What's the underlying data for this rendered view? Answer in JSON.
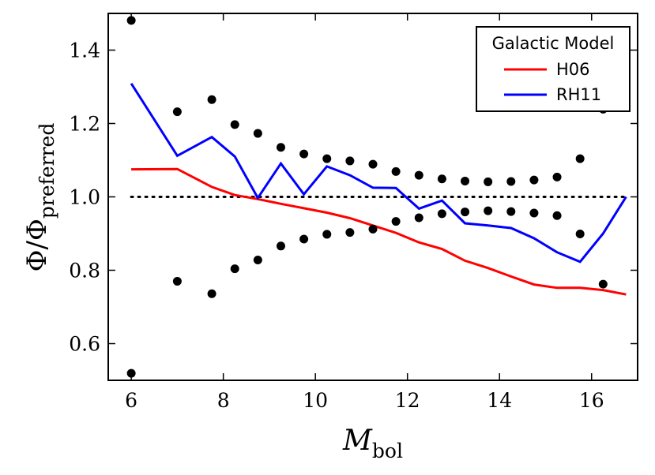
{
  "chart_data": {
    "type": "line",
    "title": "",
    "xlabel": {
      "main": "M",
      "sub": "bol"
    },
    "ylabel": {
      "phi": "Φ",
      "slash": "/",
      "phi2": "Φ",
      "sub": "preferred"
    },
    "xlim": [
      5.5,
      17.0
    ],
    "ylim": [
      0.5,
      1.5
    ],
    "xticks": [
      6,
      8,
      10,
      12,
      14,
      16
    ],
    "xtick_labels": [
      "6",
      "8",
      "10",
      "12",
      "14",
      "16"
    ],
    "yticks": [
      0.6,
      0.8,
      1.0,
      1.2,
      1.4
    ],
    "ytick_labels": [
      "0.6",
      "0.8",
      "1.0",
      "1.2",
      "1.4"
    ],
    "grid": false,
    "reference_line": {
      "y": 1.0,
      "style": "dotted",
      "x_range": [
        6.0,
        16.75
      ]
    },
    "series": [
      {
        "name": "H06",
        "color": "#ff0000",
        "x": [
          6.0,
          7.0,
          7.75,
          8.25,
          8.75,
          9.25,
          9.75,
          10.25,
          10.75,
          11.25,
          11.75,
          12.25,
          12.75,
          13.25,
          13.75,
          14.25,
          14.75,
          15.25,
          15.75,
          16.25,
          16.75
        ],
        "y": [
          1.075,
          1.076,
          1.027,
          1.005,
          0.994,
          0.981,
          0.969,
          0.957,
          0.942,
          0.922,
          0.902,
          0.876,
          0.858,
          0.826,
          0.806,
          0.783,
          0.761,
          0.752,
          0.752,
          0.746,
          0.734
        ]
      },
      {
        "name": "RH11",
        "color": "#0000ff",
        "x": [
          6.0,
          7.0,
          7.75,
          8.25,
          8.75,
          9.25,
          9.75,
          10.25,
          10.75,
          11.25,
          11.75,
          12.25,
          12.75,
          13.25,
          13.75,
          14.25,
          14.75,
          15.25,
          15.75,
          16.25,
          16.75
        ],
        "y": [
          1.309,
          1.112,
          1.163,
          1.11,
          0.997,
          1.091,
          1.007,
          1.083,
          1.059,
          1.025,
          1.024,
          0.968,
          0.99,
          0.928,
          0.922,
          0.915,
          0.887,
          0.849,
          0.823,
          0.9,
          1.0
        ]
      }
    ],
    "scatter": {
      "name": "bounds",
      "color": "#000000",
      "upper": {
        "x": [
          6.0,
          7.0,
          7.75,
          8.25,
          8.75,
          9.25,
          9.75,
          10.25,
          10.75,
          11.25,
          11.75,
          12.25,
          12.75,
          13.25,
          13.75,
          14.25,
          14.75,
          15.25,
          15.75,
          16.25
        ],
        "y": [
          1.481,
          1.232,
          1.265,
          1.197,
          1.173,
          1.135,
          1.117,
          1.104,
          1.098,
          1.089,
          1.069,
          1.059,
          1.049,
          1.043,
          1.041,
          1.042,
          1.046,
          1.054,
          1.104,
          1.239
        ]
      },
      "lower": {
        "x": [
          6.0,
          7.0,
          7.75,
          8.25,
          8.75,
          9.25,
          9.75,
          10.25,
          10.75,
          11.25,
          11.75,
          12.25,
          12.75,
          13.25,
          13.75,
          14.25,
          14.75,
          15.25,
          15.75,
          16.25
        ],
        "y": [
          0.519,
          0.77,
          0.736,
          0.804,
          0.828,
          0.866,
          0.885,
          0.898,
          0.903,
          0.912,
          0.933,
          0.943,
          0.954,
          0.959,
          0.962,
          0.96,
          0.956,
          0.949,
          0.899,
          0.762
        ]
      }
    },
    "legend": {
      "title": "Galactic Model",
      "placement": "top-right",
      "entries": [
        "H06",
        "RH11"
      ]
    }
  }
}
